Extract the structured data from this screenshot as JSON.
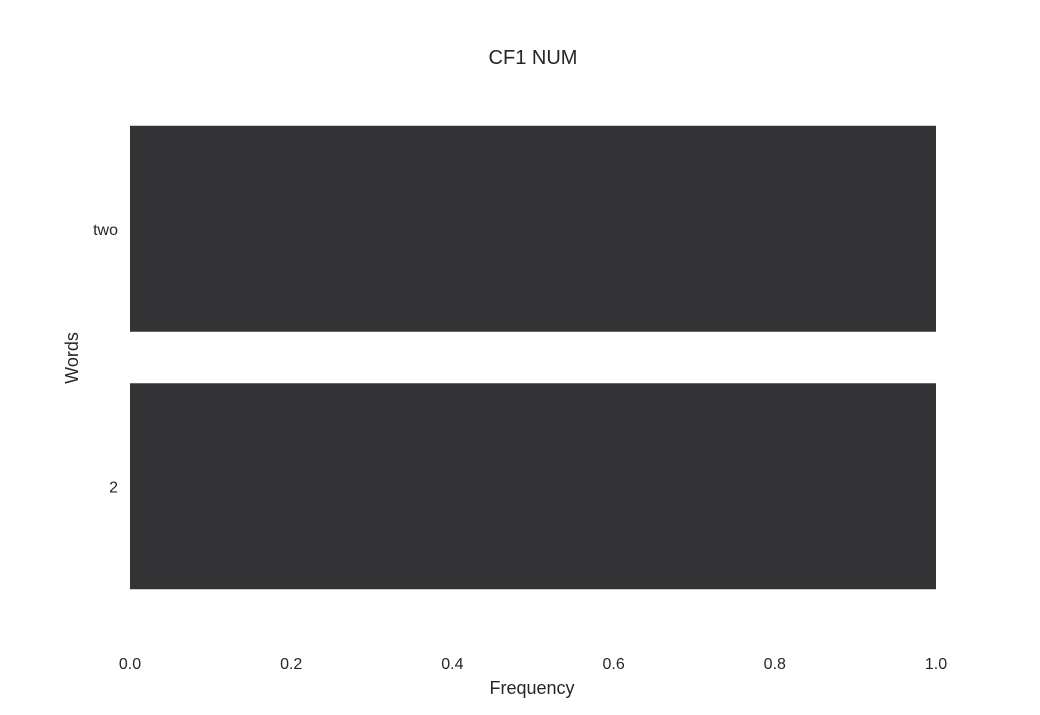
{
  "chart_data": {
    "type": "bar",
    "orientation": "horizontal",
    "title": "CF1 NUM",
    "xlabel": "Frequency",
    "ylabel": "Words",
    "categories": [
      "two",
      "2"
    ],
    "values": [
      1.0,
      1.0
    ],
    "xlim": [
      0.0,
      1.0
    ],
    "xticks": [
      "0.0",
      "0.2",
      "0.4",
      "0.6",
      "0.8",
      "1.0"
    ],
    "grid": false,
    "bar_color": "#333335",
    "background": "#ffffff",
    "text_color": "#262626"
  }
}
